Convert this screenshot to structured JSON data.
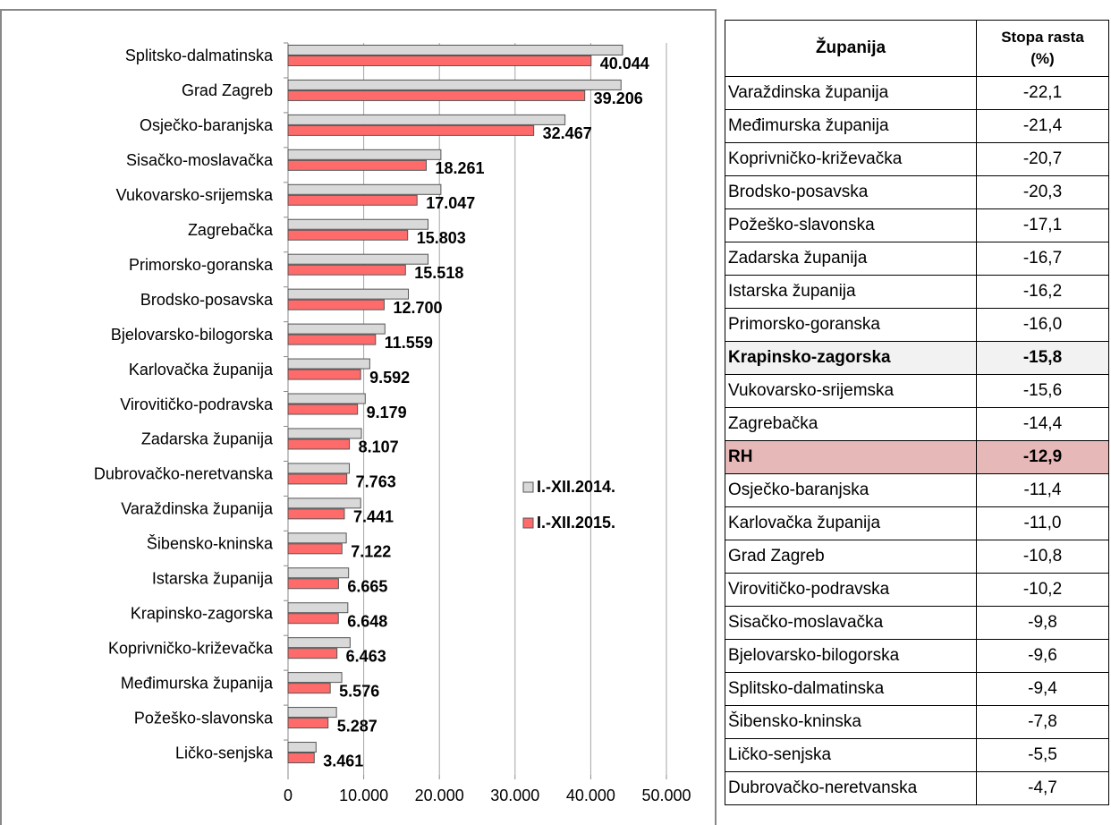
{
  "chart_data": {
    "type": "hbar",
    "categories": [
      "Splitsko-dalmatinska",
      "Grad Zagreb",
      "Osječko-baranjska",
      "Sisačko-moslavačka",
      "Vukovarsko-srijemska",
      "Zagrebačka",
      "Primorsko-goranska",
      "Brodsko-posavska",
      "Bjelovarsko-bilogorska",
      "Karlovačka županija",
      "Virovitičko-podravska",
      "Zadarska županija",
      "Dubrovačko-neretvanska",
      "Varaždinska županija",
      "Šibensko-kninska",
      "Istarska županija",
      "Krapinsko-zagorska",
      "Koprivničko-križevačka",
      "Međimurska županija",
      "Požeško-slavonska",
      "Ličko-senjska"
    ],
    "series": [
      {
        "name": "I.-XII.2014.",
        "color": "#d9d9d9",
        "values": [
          44200,
          44000,
          36600,
          20200,
          20200,
          18500,
          18500,
          15900,
          12800,
          10800,
          10200,
          9700,
          8100,
          9600,
          7700,
          8000,
          7900,
          8200,
          7100,
          6400,
          3700
        ]
      },
      {
        "name": "I.-XII.2015.",
        "color": "#ff6b6b",
        "values": [
          40044,
          39206,
          32467,
          18261,
          17047,
          15803,
          15518,
          12700,
          11559,
          9592,
          9179,
          8107,
          7763,
          7441,
          7122,
          6665,
          6648,
          6463,
          5576,
          5287,
          3461
        ],
        "value_labels": [
          "40.044",
          "39.206",
          "32.467",
          "18.261",
          "17.047",
          "15.803",
          "15.518",
          "12.700",
          "11.559",
          "9.592",
          "9.179",
          "8.107",
          "7.763",
          "7.441",
          "7.122",
          "6.665",
          "6.648",
          "6.463",
          "5.576",
          "5.287",
          "3.461"
        ]
      }
    ],
    "xlim": [
      0,
      50000
    ],
    "xticks": [
      0,
      {
        "value": 10000,
        "label": "10.000"
      },
      {
        "value": 20000,
        "label": "20.000"
      },
      {
        "value": 30000,
        "label": "30.000"
      },
      {
        "value": 40000,
        "label": "40.000"
      },
      {
        "value": 50000,
        "label": "50.000"
      }
    ],
    "grid": true,
    "legend": "right"
  },
  "table": {
    "header": [
      "Županija",
      "Stopa rasta (%)"
    ],
    "rows": [
      [
        "Varaždinska županija",
        "-22,1"
      ],
      [
        "Međimurska županija",
        "-21,4"
      ],
      [
        "Koprivničko-križevačka",
        "-20,7"
      ],
      [
        "Brodsko-posavska",
        "-20,3"
      ],
      [
        "Požeško-slavonska",
        "-17,1"
      ],
      [
        "Zadarska županija",
        "-16,7"
      ],
      [
        "Istarska županija",
        "-16,2"
      ],
      [
        "Primorsko-goranska",
        "-16,0"
      ],
      [
        "Krapinsko-zagorska",
        "-15,8"
      ],
      [
        "Vukovarsko-srijemska",
        "-15,6"
      ],
      [
        "Zagrebačka",
        "-14,4"
      ],
      [
        "RH",
        "-12,9"
      ],
      [
        "Osječko-baranjska",
        "-11,4"
      ],
      [
        "Karlovačka županija",
        "-11,0"
      ],
      [
        "Grad Zagreb",
        "-10,8"
      ],
      [
        "Virovitičko-podravska",
        "-10,2"
      ],
      [
        "Sisačko-moslavačka",
        "-9,8"
      ],
      [
        "Bjelovarsko-bilogorska",
        "-9,6"
      ],
      [
        "Splitsko-dalmatinska",
        "-9,4"
      ],
      [
        "Šibensko-kninska",
        "-7,8"
      ],
      [
        "Ličko-senjska",
        "-5,5"
      ],
      [
        "Dubrovačko-neretvanska",
        "-4,7"
      ]
    ],
    "bold_rows": [
      8,
      11
    ],
    "highlight_row": 11
  }
}
